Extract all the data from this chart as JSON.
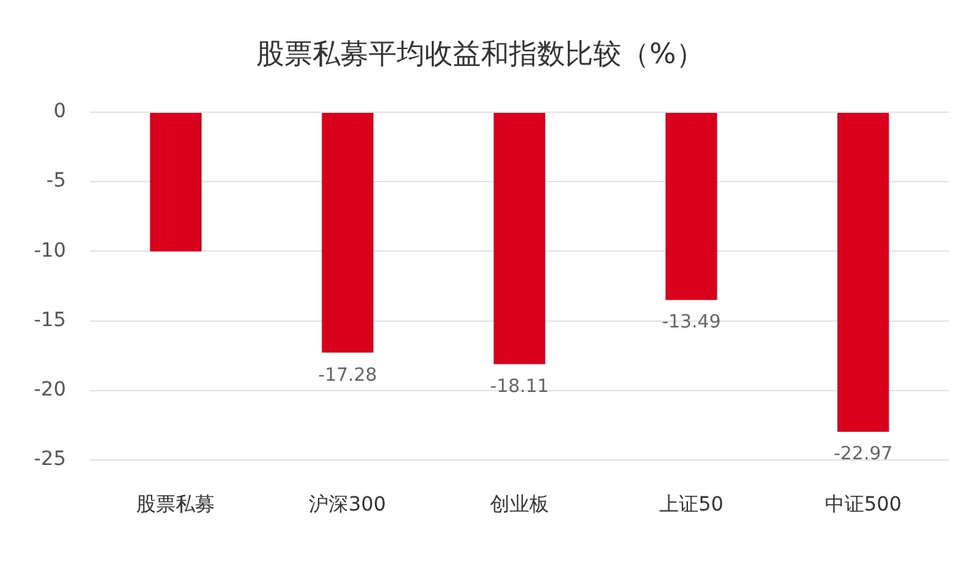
{
  "chart_data": {
    "type": "bar",
    "title": "股票私募平均收益和指数比较（%）",
    "categories": [
      "股票私募",
      "沪深300",
      "创业板",
      "上证50",
      "中证500"
    ],
    "values": [
      -10,
      -17.28,
      -18.11,
      -13.49,
      -22.97
    ],
    "color": "#d9001b",
    "value_labels": [
      null,
      "-17.28",
      "-18.11",
      "-13.49",
      "-22.97"
    ],
    "ylim": [
      -25,
      0
    ],
    "yticks": [
      -25,
      -20,
      -15,
      -10,
      -5,
      0
    ],
    "grid": "y"
  }
}
